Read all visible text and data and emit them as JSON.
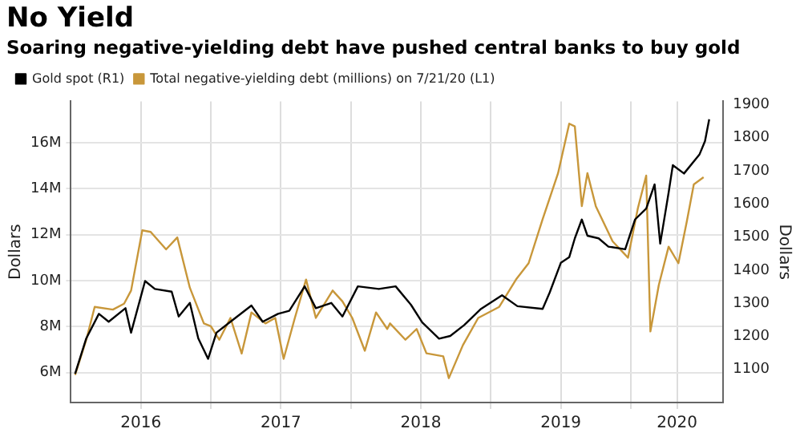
{
  "chart_data": {
    "type": "line",
    "title": "No Yield",
    "subtitle": "Soaring negative-yielding debt have pushed central banks to buy gold",
    "ylabel": "Dollars",
    "y2label": "Dollars",
    "xlim": [
      2016.0,
      2020.66
    ],
    "xticks": [
      {
        "value": 2016.5,
        "label": "2016"
      },
      {
        "value": 2017,
        "label": null
      },
      {
        "value": 2017.5,
        "label": "2017"
      },
      {
        "value": 2018,
        "label": null
      },
      {
        "value": 2018.5,
        "label": "2018"
      },
      {
        "value": 2019,
        "label": null
      },
      {
        "value": 2019.5,
        "label": "2019"
      },
      {
        "value": 2020,
        "label": null
      },
      {
        "value": 2020.33,
        "label": "2020"
      }
    ],
    "ylim": [
      4.7,
      17.8
    ],
    "yticks": [
      {
        "value": 6,
        "label": "6M"
      },
      {
        "value": 8,
        "label": "8M"
      },
      {
        "value": 10,
        "label": "10M"
      },
      {
        "value": 12,
        "label": "12M"
      },
      {
        "value": 14,
        "label": "14M"
      },
      {
        "value": 16,
        "label": "16M"
      }
    ],
    "y2lim": [
      1000,
      1910
    ],
    "y2ticks": [
      1100,
      1200,
      1300,
      1400,
      1500,
      1600,
      1700,
      1800,
      1900
    ],
    "grid": true,
    "legend": "top left",
    "marker": "none",
    "line_style": "solid",
    "series": [
      {
        "name": "Gold spot (R1)",
        "color": "#000000",
        "axis": "y2",
        "x": [
          2016.03,
          2016.11,
          2016.2,
          2016.27,
          2016.39,
          2016.43,
          2016.53,
          2016.6,
          2016.72,
          2016.77,
          2016.85,
          2016.91,
          2016.98,
          2017.04,
          2017.14,
          2017.29,
          2017.37,
          2017.48,
          2017.56,
          2017.67,
          2017.75,
          2017.86,
          2017.94,
          2018.05,
          2018.2,
          2018.32,
          2018.43,
          2018.51,
          2018.63,
          2018.71,
          2018.81,
          2018.93,
          2019.08,
          2019.19,
          2019.37,
          2019.42,
          2019.5,
          2019.56,
          2019.6,
          2019.65,
          2019.69,
          2019.77,
          2019.84,
          2019.96,
          2020.03,
          2020.11,
          2020.17,
          2020.21,
          2020.27,
          2020.3,
          2020.38,
          2020.49,
          2020.53,
          2020.56
        ],
        "values": [
          1087,
          1194,
          1268,
          1244,
          1285,
          1211,
          1367,
          1343,
          1335,
          1260,
          1301,
          1194,
          1132,
          1211,
          1244,
          1293,
          1244,
          1268,
          1277,
          1351,
          1285,
          1301,
          1260,
          1351,
          1343,
          1351,
          1295,
          1242,
          1193,
          1201,
          1234,
          1283,
          1324,
          1291,
          1283,
          1332,
          1422,
          1439,
          1496,
          1553,
          1504,
          1496,
          1471,
          1463,
          1553,
          1586,
          1659,
          1480,
          1634,
          1717,
          1692,
          1749,
          1790,
          1856
        ]
      },
      {
        "name": "Total negative-yielding debt (millions) on 7/21/20 (L1)",
        "color": "#c8973a",
        "axis": "y",
        "x": [
          2016.03,
          2016.11,
          2016.17,
          2016.3,
          2016.38,
          2016.43,
          2016.51,
          2016.57,
          2016.68,
          2016.76,
          2016.85,
          2016.95,
          2017.0,
          2017.06,
          2017.14,
          2017.22,
          2017.29,
          2017.39,
          2017.46,
          2017.52,
          2017.6,
          2017.68,
          2017.75,
          2017.87,
          2017.94,
          2018.01,
          2018.1,
          2018.18,
          2018.26,
          2018.28,
          2018.39,
          2018.47,
          2018.54,
          2018.66,
          2018.7,
          2018.8,
          2018.91,
          2019.06,
          2019.18,
          2019.27,
          2019.37,
          2019.48,
          2019.56,
          2019.6,
          2019.65,
          2019.69,
          2019.75,
          2019.87,
          2019.98,
          2020.05,
          2020.11,
          2020.14,
          2020.2,
          2020.27,
          2020.34,
          2020.4,
          2020.45,
          2020.52
        ],
        "values": [
          5.9,
          7.43,
          8.86,
          8.74,
          9.0,
          9.57,
          12.19,
          12.12,
          11.36,
          11.88,
          9.69,
          8.14,
          8.02,
          7.43,
          8.38,
          6.83,
          8.62,
          8.14,
          8.38,
          6.6,
          8.38,
          10.05,
          8.38,
          9.57,
          9.1,
          8.38,
          6.95,
          8.62,
          7.9,
          8.14,
          7.43,
          7.9,
          6.84,
          6.71,
          5.76,
          7.19,
          8.38,
          8.86,
          10.05,
          10.76,
          12.67,
          14.67,
          16.83,
          16.71,
          13.24,
          14.68,
          13.24,
          11.71,
          11.0,
          13.14,
          14.57,
          7.79,
          9.81,
          11.48,
          10.76,
          12.57,
          14.19,
          14.5
        ]
      }
    ]
  }
}
